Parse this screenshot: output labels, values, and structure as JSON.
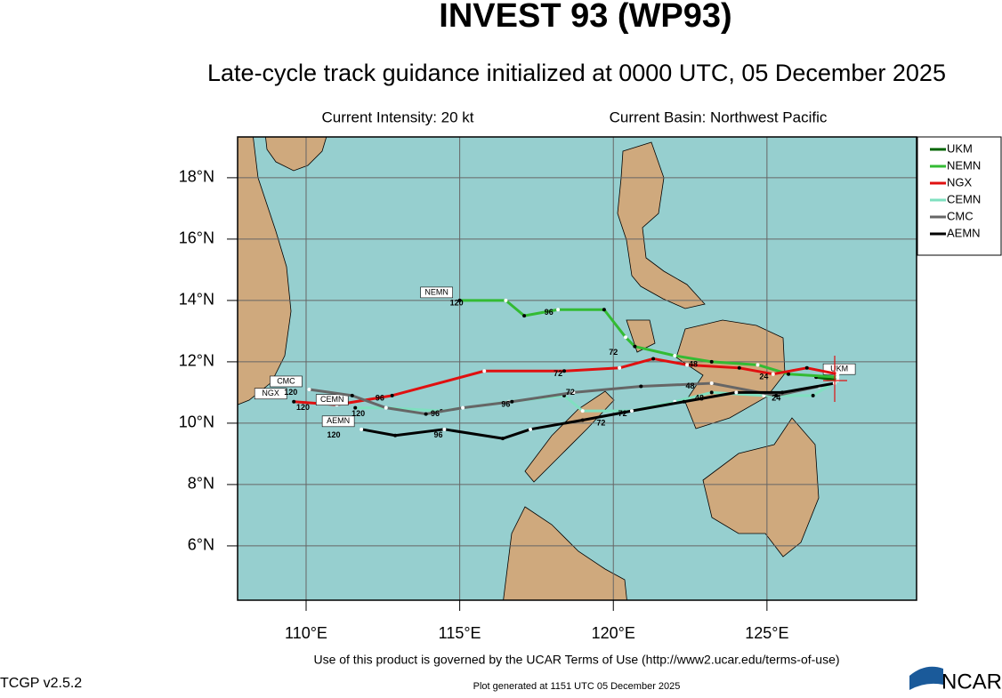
{
  "chart_data": {
    "type": "track",
    "title": "INVEST 93 (WP93)",
    "subtitle": "Late-cycle track guidance initialized at 0000 UTC, 05 December 2025",
    "intensity": "Current Intensity: 20 kt",
    "basin": "Current Basin: Northwest Pacific",
    "xlim": [
      107.77,
      129.87
    ],
    "ylim": [
      4.23,
      19.33
    ],
    "xticks": [
      {
        "value": 110,
        "label": "110°E"
      },
      {
        "value": 115,
        "label": "115°E"
      },
      {
        "value": 120,
        "label": "120°E"
      },
      {
        "value": 125,
        "label": "125°E"
      }
    ],
    "yticks": [
      {
        "value": 6,
        "label": "6°N"
      },
      {
        "value": 8,
        "label": "8°N"
      },
      {
        "value": 10,
        "label": "10°N"
      },
      {
        "value": 12,
        "label": "12°N"
      },
      {
        "value": 14,
        "label": "14°N"
      },
      {
        "value": 16,
        "label": "16°N"
      },
      {
        "value": 18,
        "label": "18°N"
      }
    ],
    "grid": true,
    "legend": "right",
    "series": [
      {
        "name": "UKM",
        "color": "#006400",
        "x": [
          127.3,
          126.6
        ],
        "values": [
          11.4,
          11.5
        ]
      },
      {
        "name": "NEMN",
        "color": "#33bb33",
        "x": [
          127.3,
          125.7,
          124.7,
          123.2,
          122.0,
          120.7,
          120.4,
          119.7,
          118.2,
          117.1,
          116.5,
          115.0
        ],
        "values": [
          11.5,
          11.6,
          11.9,
          12.0,
          12.2,
          12.5,
          12.8,
          13.7,
          13.7,
          13.5,
          14.0,
          14.0
        ]
      },
      {
        "name": "NGX",
        "color": "#e01010",
        "x": [
          127.3,
          126.3,
          125.2,
          124.1,
          122.4,
          121.3,
          120.2,
          118.4,
          115.8,
          112.8,
          111.0,
          109.6
        ],
        "values": [
          11.6,
          11.8,
          11.6,
          11.8,
          11.9,
          12.1,
          11.8,
          11.7,
          11.7,
          10.9,
          10.6,
          10.7
        ]
      },
      {
        "name": "CEMN",
        "color": "#7fe0c0",
        "x": [
          127.3,
          126.5,
          124.9,
          123.2,
          122.0,
          120.6,
          119.0,
          118.4,
          116.6,
          114.4,
          112.6,
          111.6
        ],
        "values": [
          11.4,
          10.9,
          10.9,
          11.0,
          10.7,
          10.4,
          10.4,
          10.9,
          10.7,
          10.4,
          10.5,
          10.5
        ]
      },
      {
        "name": "CMC",
        "color": "#666666",
        "x": [
          126.7,
          125.3,
          123.2,
          120.9,
          118.7,
          116.7,
          115.1,
          113.9,
          112.6,
          111.5,
          110.1
        ],
        "values": [
          11.2,
          10.9,
          11.3,
          11.2,
          11.0,
          10.7,
          10.5,
          10.3,
          10.5,
          10.9,
          11.1
        ]
      },
      {
        "name": "AEMN",
        "color": "#000000",
        "x": [
          127.2,
          125.5,
          124.0,
          122.3,
          120.6,
          119.0,
          117.3,
          116.4,
          114.5,
          112.9,
          111.8
        ],
        "values": [
          11.3,
          11.0,
          11.0,
          10.7,
          10.4,
          10.1,
          9.8,
          9.5,
          9.8,
          9.6,
          9.8
        ]
      }
    ],
    "annotations": [
      {
        "label": "120",
        "x": 114.9,
        "y": 13.9
      },
      {
        "label": "96",
        "x": 117.9,
        "y": 13.6
      },
      {
        "label": "72",
        "x": 120.0,
        "y": 12.3
      },
      {
        "label": "48",
        "x": 122.6,
        "y": 11.9
      },
      {
        "label": "24",
        "x": 124.9,
        "y": 11.5
      },
      {
        "label": "120",
        "x": 109.5,
        "y": 11.0
      },
      {
        "label": "120",
        "x": 109.9,
        "y": 10.5
      },
      {
        "label": "96",
        "x": 112.4,
        "y": 10.8
      },
      {
        "label": "72",
        "x": 118.2,
        "y": 11.6
      },
      {
        "label": "120",
        "x": 111.7,
        "y": 10.3
      },
      {
        "label": "96",
        "x": 114.2,
        "y": 10.3
      },
      {
        "label": "96",
        "x": 116.5,
        "y": 10.6
      },
      {
        "label": "72",
        "x": 118.6,
        "y": 11.0
      },
      {
        "label": "48",
        "x": 122.5,
        "y": 11.2
      },
      {
        "label": "120",
        "x": 110.9,
        "y": 9.6
      },
      {
        "label": "96",
        "x": 114.3,
        "y": 9.6
      },
      {
        "label": "72",
        "x": 119.6,
        "y": 10.0
      },
      {
        "label": "72",
        "x": 120.3,
        "y": 10.3
      },
      {
        "label": "48",
        "x": 122.8,
        "y": 10.8
      },
      {
        "label": "24",
        "x": 125.3,
        "y": 10.8
      }
    ],
    "footer": "Use of this product is governed by the UCAR Terms of Use (http://www2.ucar.edu/terms-of-use)",
    "version": "TCGP v2.5.2",
    "generated": "Plot generated at 1151 UTC   05 December 2025",
    "logo": "NCAR"
  }
}
